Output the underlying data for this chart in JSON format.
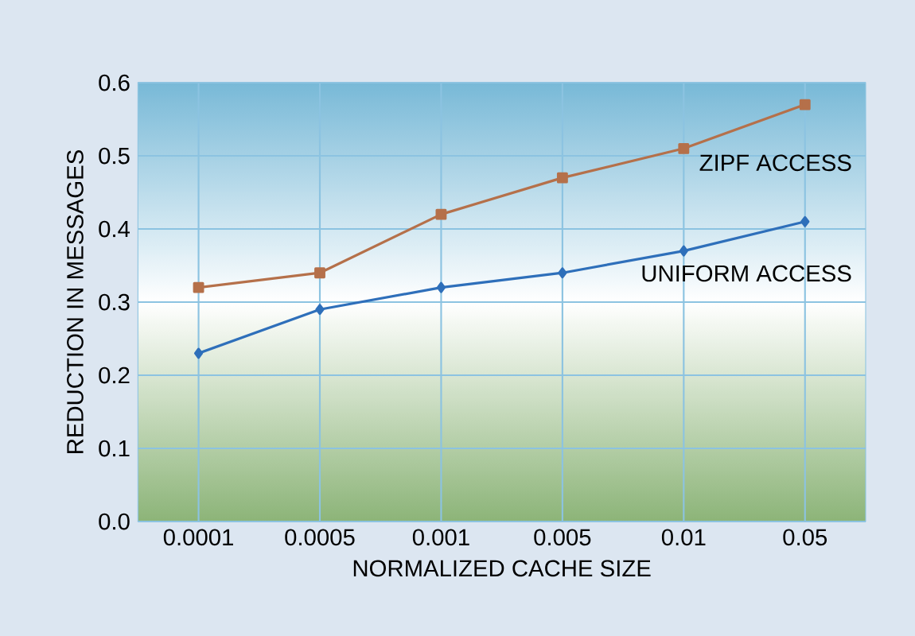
{
  "chart_data": {
    "type": "line",
    "xlabel": "NORMALIZED CACHE SIZE",
    "ylabel": "REDUCTION IN MESSAGES",
    "categories": [
      "0.0001",
      "0.0005",
      "0.001",
      "0.005",
      "0.01",
      "0.05"
    ],
    "series": [
      {
        "name": "ZIPF ACCESS",
        "color": "#b5704a",
        "marker": "square",
        "values": [
          0.32,
          0.34,
          0.42,
          0.47,
          0.51,
          0.57
        ]
      },
      {
        "name": "UNIFORM ACCESS",
        "color": "#2e6fba",
        "marker": "diamond",
        "values": [
          0.23,
          0.29,
          0.32,
          0.34,
          0.37,
          0.41
        ]
      }
    ],
    "ylim": [
      0,
      0.6
    ],
    "yticks": [
      {
        "value": 0,
        "label": "0.0"
      },
      {
        "value": 0.1,
        "label": "0.1"
      },
      {
        "value": 0.2,
        "label": "0.2"
      },
      {
        "value": 0.3,
        "label": "0.3"
      },
      {
        "value": 0.4,
        "label": "0.4"
      },
      {
        "value": 0.5,
        "label": "0.5"
      },
      {
        "value": 0.6,
        "label": "0.6"
      }
    ],
    "grid": true,
    "line_style": "solid"
  }
}
